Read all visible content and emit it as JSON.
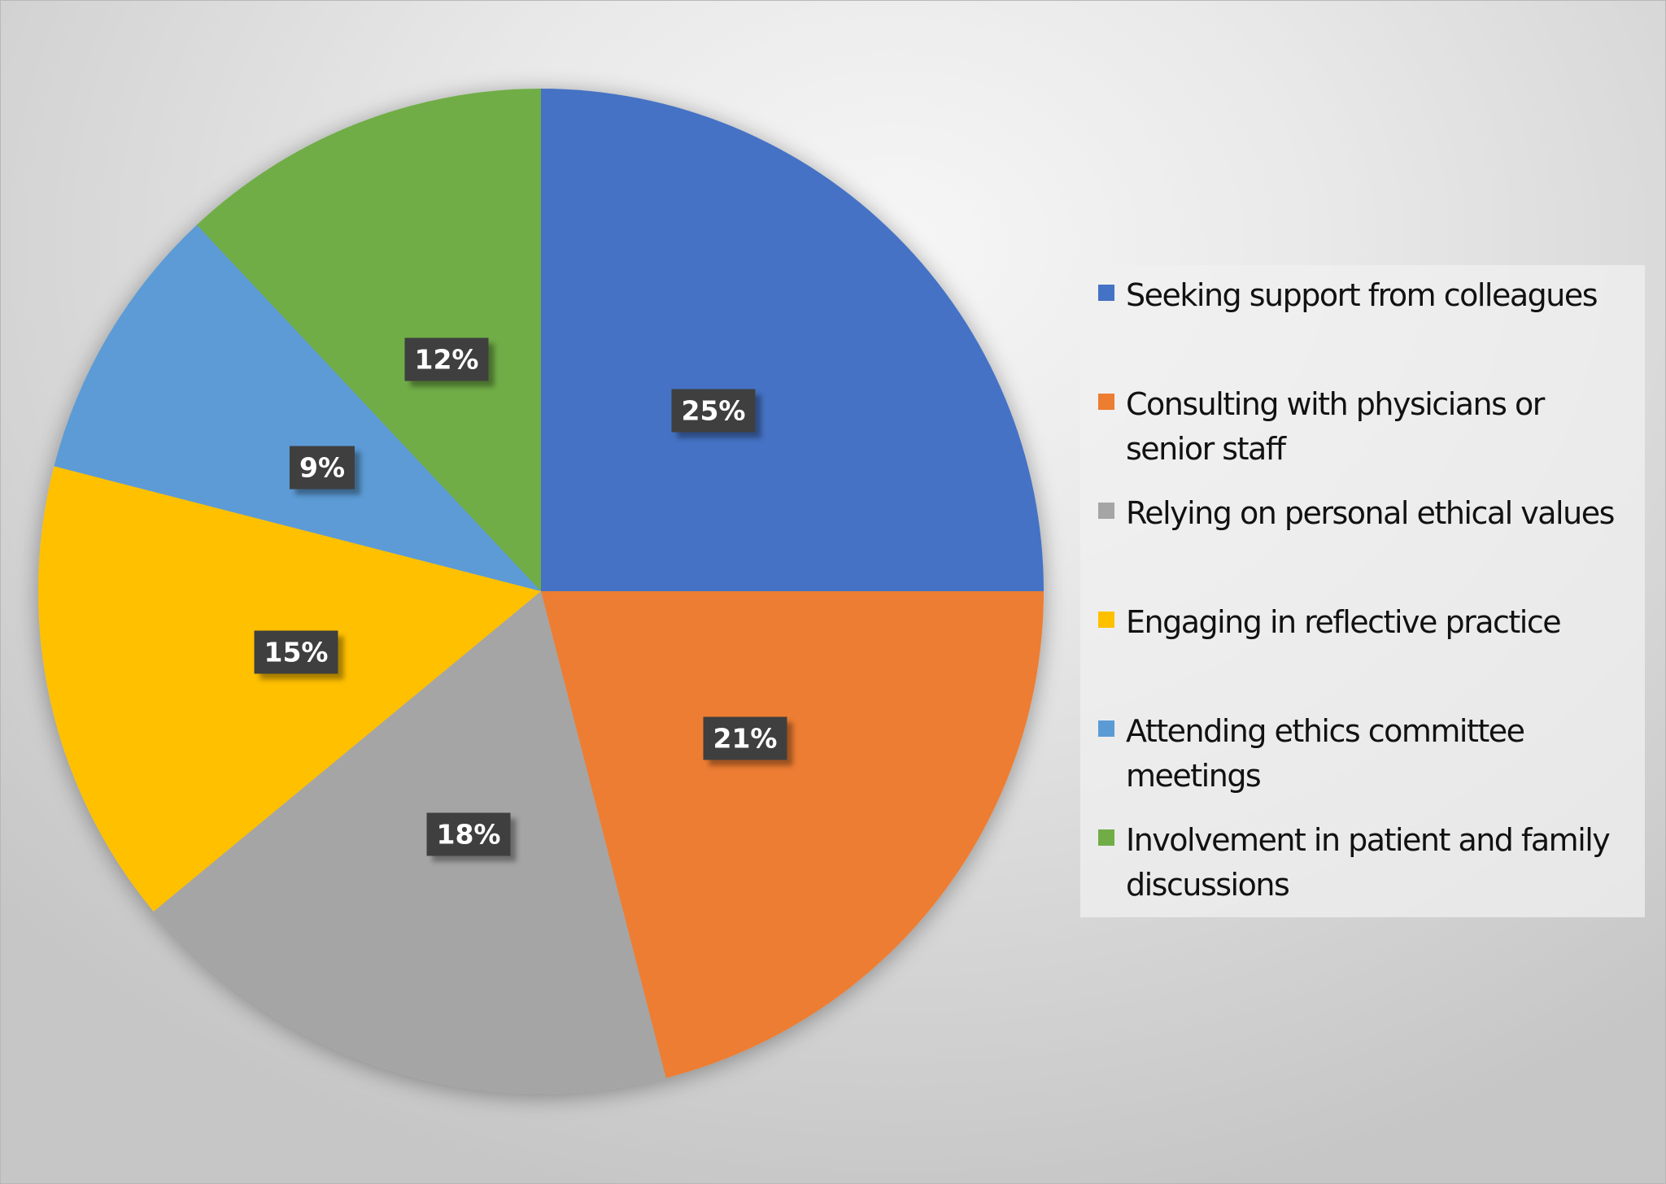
{
  "chart_data": {
    "type": "pie",
    "title": "",
    "categories": [
      "Seeking support from colleagues",
      "Consulting with physicians or senior staff",
      "Relying on personal ethical values",
      "Engaging in reflective practice",
      "Attending ethics committee meetings",
      "Involvement in patient and family discussions"
    ],
    "values": [
      25,
      21,
      18,
      15,
      9,
      12
    ],
    "value_labels": [
      "25%",
      "21%",
      "18%",
      "15%",
      "9%",
      "12%"
    ],
    "colors": [
      "#4472C4",
      "#ED7D31",
      "#A5A5A5",
      "#FFC000",
      "#5B9BD5",
      "#70AD47"
    ],
    "legend_position": "right",
    "start_angle": "12 o'clock, clockwise"
  },
  "legend": {
    "items": [
      {
        "label": "Seeking support from colleagues",
        "color": "#4472C4"
      },
      {
        "label": "Consulting with physicians or senior staff",
        "color": "#ED7D31"
      },
      {
        "label": "Relying on personal ethical values",
        "color": "#A5A5A5"
      },
      {
        "label": "Engaging in reflective practice",
        "color": "#FFC000"
      },
      {
        "label": "Attending ethics committee meetings",
        "color": "#5B9BD5"
      },
      {
        "label": "Involvement in patient and family discussions",
        "color": "#70AD47"
      }
    ]
  },
  "labels": [
    "25%",
    "21%",
    "18%",
    "15%",
    "9%",
    "12%"
  ]
}
